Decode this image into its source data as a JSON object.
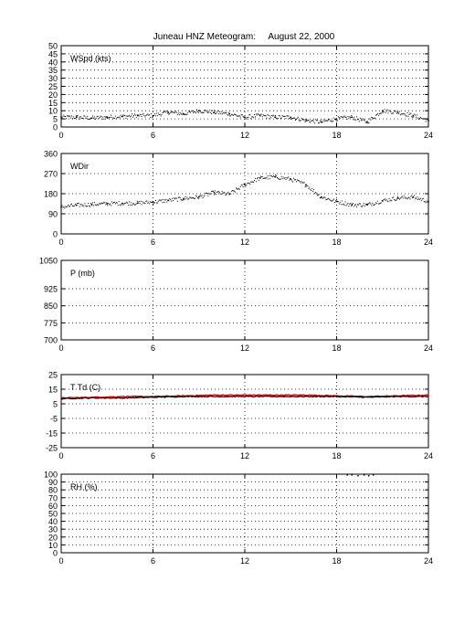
{
  "figure_title": "Juneau HNZ Meteogram:     August 22, 2000",
  "chart_data": [
    {
      "type": "scatter",
      "panel_label": "WSpd (kts)",
      "xlim": [
        0,
        24
      ],
      "xticks": [
        "0",
        "6",
        "12",
        "18",
        "24"
      ],
      "ylim": [
        0,
        50
      ],
      "yticks": [
        "0",
        "5",
        "10",
        "15",
        "20",
        "25",
        "30",
        "35",
        "40",
        "45",
        "50"
      ],
      "grid": true,
      "series": [
        {
          "color": "#000000",
          "x": [
            0,
            1,
            2,
            3,
            4,
            5,
            6,
            7,
            8,
            9,
            10,
            11,
            12,
            13,
            14,
            15,
            16,
            17,
            18,
            19,
            20,
            21,
            22,
            23,
            24
          ],
          "y": [
            6,
            6,
            5.5,
            6,
            6.5,
            7,
            7,
            9,
            8,
            10,
            9,
            8,
            6,
            7,
            6,
            6,
            4,
            3,
            5,
            6,
            3,
            10,
            9,
            7,
            4
          ]
        }
      ]
    },
    {
      "type": "scatter",
      "panel_label": "WDir",
      "xlim": [
        0,
        24
      ],
      "xticks": [
        "0",
        "6",
        "12",
        "18",
        "24"
      ],
      "ylim": [
        0,
        360
      ],
      "yticks": [
        "0",
        "90",
        "180",
        "270",
        "360"
      ],
      "grid": true,
      "series": [
        {
          "color": "#000000",
          "x": [
            0,
            1,
            2,
            3,
            4,
            5,
            6,
            7,
            8,
            9,
            10,
            11,
            12,
            13,
            14,
            15,
            16,
            17,
            18,
            19,
            20,
            21,
            22,
            23,
            24
          ],
          "y": [
            120,
            128,
            132,
            135,
            137,
            138,
            142,
            150,
            158,
            165,
            185,
            178,
            220,
            250,
            255,
            245,
            220,
            165,
            145,
            130,
            130,
            148,
            160,
            165,
            145
          ]
        }
      ]
    },
    {
      "type": "scatter",
      "panel_label": "P (mb)",
      "xlim": [
        0,
        24
      ],
      "xticks": [
        "0",
        "6",
        "12",
        "18",
        "24"
      ],
      "ylim": [
        700,
        1050
      ],
      "yticks": [
        "700",
        "775",
        "850",
        "925",
        "1050"
      ],
      "grid": true,
      "series": []
    },
    {
      "type": "line",
      "panel_label": "T Td (C)",
      "xlim": [
        0,
        24
      ],
      "xticks": [
        "0",
        "6",
        "12",
        "18",
        "24"
      ],
      "ylim": [
        -25,
        25
      ],
      "yticks": [
        "-25",
        "-15",
        "-5",
        "5",
        "15",
        "25"
      ],
      "grid": true,
      "series": [
        {
          "color": "#cc0000",
          "x": [
            0,
            2,
            4,
            6,
            8,
            10,
            12,
            14,
            16,
            18,
            20,
            22,
            24
          ],
          "y": [
            9,
            9.5,
            10,
            10,
            10.5,
            11,
            11,
            11,
            11,
            10.5,
            10,
            10.5,
            11
          ]
        },
        {
          "color": "#000000",
          "x": [
            0,
            2,
            4,
            6,
            8,
            10,
            12,
            14,
            16,
            18,
            20,
            22,
            24
          ],
          "y": [
            8.5,
            9,
            9,
            9.5,
            10,
            10,
            10,
            10,
            10,
            10,
            9.5,
            10,
            10
          ]
        }
      ]
    },
    {
      "type": "scatter",
      "panel_label": "RH (%)",
      "xlim": [
        0,
        24
      ],
      "xticks": [
        "0",
        "6",
        "12",
        "18",
        "24"
      ],
      "ylim": [
        0,
        100
      ],
      "yticks": [
        "0",
        "10",
        "20",
        "30",
        "40",
        "50",
        "60",
        "70",
        "80",
        "90",
        "100"
      ],
      "grid": true,
      "series": [
        {
          "color": "#000000",
          "x": [
            18.7,
            19.0,
            19.4,
            19.8,
            20.1,
            20.4
          ],
          "y": [
            99,
            99,
            98,
            99,
            98,
            99
          ]
        }
      ]
    }
  ]
}
